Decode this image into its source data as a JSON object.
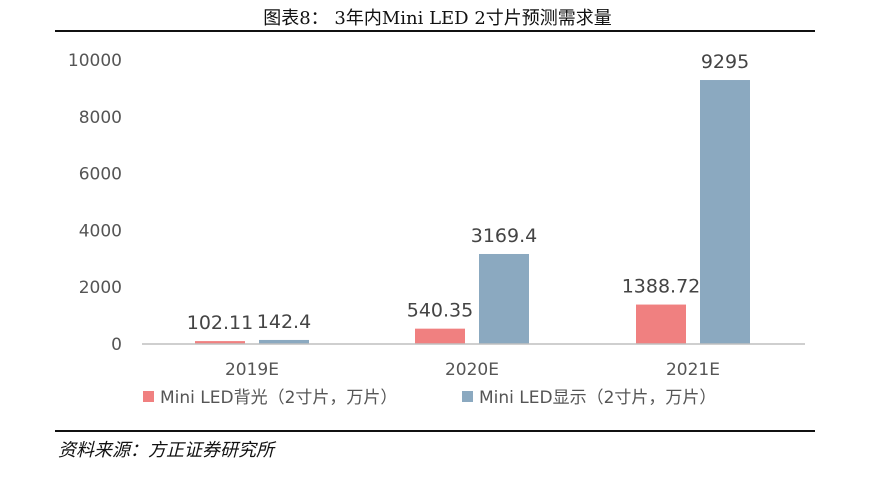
{
  "header": {
    "title": "图表8：  3年内Mini LED 2寸片预测需求量"
  },
  "source": "资料来源：方正证券研究所",
  "colors": {
    "backlight": "#f08080",
    "display": "#8ba9c0",
    "axis": "#bfbfbf",
    "text": "#555555"
  },
  "chart_data": {
    "type": "bar",
    "title": "3年内Mini LED 2寸片预测需求量",
    "categories": [
      "2019E",
      "2020E",
      "2021E"
    ],
    "series": [
      {
        "name": "Mini LED背光（2寸片，万片）",
        "values": [
          102.11,
          540.35,
          1388.72
        ],
        "labels": [
          "102.11",
          "540.35",
          "1388.72"
        ]
      },
      {
        "name": "Mini LED显示（2寸片，万片）",
        "values": [
          142.4,
          3169.4,
          9295
        ],
        "labels": [
          "142.4",
          "3169.4",
          "9295"
        ]
      }
    ],
    "yticks": [
      "0",
      "2000",
      "4000",
      "6000",
      "8000",
      "10000"
    ],
    "ylim": [
      0,
      10000
    ],
    "grid": false,
    "legend": "bottom-left",
    "xlabel": "",
    "ylabel": ""
  }
}
